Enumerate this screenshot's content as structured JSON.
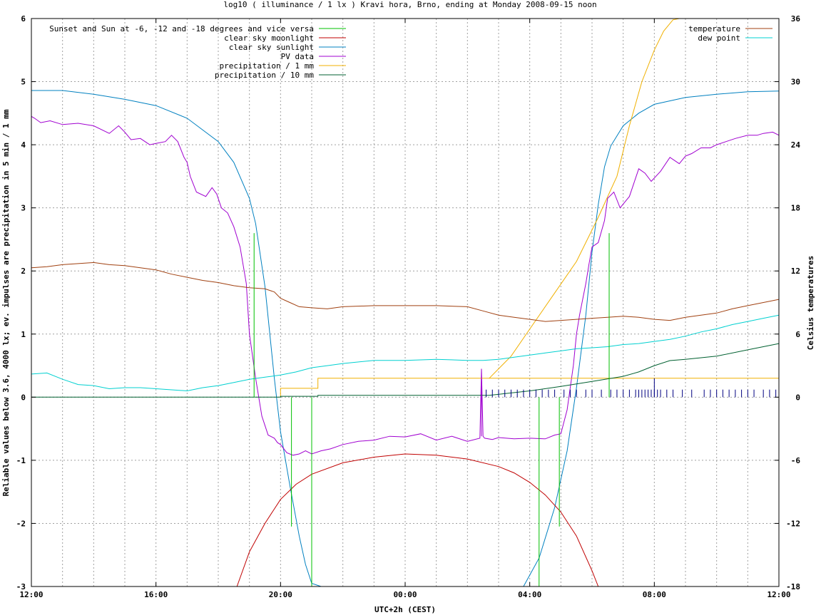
{
  "chart_data": {
    "type": "line",
    "title": "log10 ( illuminance / 1 lx ) Kravi hora, Brno, ending at Monday 2008-09-15 noon",
    "xlabel": "UTC+2h (CEST)",
    "ylabel": "Reliable values below 3.6, 4000 lx; ev. impulses are precipitation in 5 min / 1 mm",
    "y2label": "Celsius temperatures",
    "xlim": [
      0,
      24
    ],
    "ylim": [
      -3,
      6
    ],
    "y2lim": [
      -18,
      36
    ],
    "grid": true,
    "x_ticks": [
      {
        "v": 0,
        "label": "12:00"
      },
      {
        "v": 4,
        "label": "16:00"
      },
      {
        "v": 8,
        "label": "20:00"
      },
      {
        "v": 12,
        "label": "00:00"
      },
      {
        "v": 16,
        "label": "04:00"
      },
      {
        "v": 20,
        "label": "08:00"
      },
      {
        "v": 24,
        "label": "12:00"
      }
    ],
    "y_ticks": [
      {
        "v": -3,
        "label": "-3"
      },
      {
        "v": -2,
        "label": "-2"
      },
      {
        "v": -1,
        "label": "-1"
      },
      {
        "v": 0,
        "label": "0"
      },
      {
        "v": 1,
        "label": "1"
      },
      {
        "v": 2,
        "label": "2"
      },
      {
        "v": 3,
        "label": "3"
      },
      {
        "v": 4,
        "label": "4"
      },
      {
        "v": 5,
        "label": "5"
      },
      {
        "v": 6,
        "label": "6"
      }
    ],
    "y2_ticks": [
      {
        "v": -18,
        "label": "-18"
      },
      {
        "v": -12,
        "label": "-12"
      },
      {
        "v": -6,
        "label": "-6"
      },
      {
        "v": 0,
        "label": "0"
      },
      {
        "v": 6,
        "label": "6"
      },
      {
        "v": 12,
        "label": "12"
      },
      {
        "v": 18,
        "label": "18"
      },
      {
        "v": 24,
        "label": "24"
      },
      {
        "v": 30,
        "label": "30"
      },
      {
        "v": 36,
        "label": "36"
      }
    ],
    "legend_left": [
      {
        "name": "Sunset and Sun at -6, -12 and -18 degrees and vice versa",
        "color": "#00c000"
      },
      {
        "name": "clear sky moonlight",
        "color": "#c00000"
      },
      {
        "name": "clear sky sunlight",
        "color": "#0080c0"
      },
      {
        "name": "PV data",
        "color": "#a000d0"
      },
      {
        "name": "precipitation / 1 mm",
        "color": "#f0b000"
      },
      {
        "name": "precipitation / 10 mm",
        "color": "#006030"
      }
    ],
    "legend_right": [
      {
        "name": "temperature",
        "color": "#a04010"
      },
      {
        "name": "dew point",
        "color": "#00d0d0"
      }
    ],
    "series": [
      {
        "key": "sunlight",
        "axis": "y",
        "color": "#0080c0",
        "x": [
          0,
          1,
          2,
          3,
          4,
          5,
          6,
          6.5,
          7,
          7.2,
          7.5,
          7.8,
          8,
          8.3,
          8.6,
          8.8,
          9.0,
          9.3,
          15.8,
          16.3,
          16.8,
          17.2,
          17.5,
          17.8,
          18.0,
          18.2,
          18.4,
          18.6,
          19,
          19.5,
          20,
          21,
          22,
          23,
          24
        ],
        "y": [
          4.86,
          4.86,
          4.8,
          4.72,
          4.62,
          4.42,
          4.05,
          3.72,
          3.15,
          2.75,
          1.75,
          0.3,
          -0.55,
          -1.4,
          -2.2,
          -2.65,
          -2.95,
          -3.0,
          -3.0,
          -2.55,
          -1.75,
          -0.85,
          0.15,
          1.3,
          2.3,
          3.05,
          3.65,
          3.98,
          4.3,
          4.5,
          4.64,
          4.75,
          4.8,
          4.84,
          4.85
        ]
      },
      {
        "key": "moonlight",
        "axis": "y",
        "color": "#c00000",
        "x": [
          6.6,
          7.0,
          7.5,
          8.0,
          8.5,
          9,
          10,
          11,
          12,
          13,
          14,
          15,
          15.5,
          16,
          16.5,
          17,
          17.5,
          18,
          18.2
        ],
        "y": [
          -3.0,
          -2.45,
          -2.0,
          -1.62,
          -1.38,
          -1.22,
          -1.04,
          -0.95,
          -0.9,
          -0.92,
          -0.98,
          -1.1,
          -1.2,
          -1.35,
          -1.55,
          -1.82,
          -2.2,
          -2.75,
          -3.0
        ]
      },
      {
        "key": "pv",
        "axis": "y",
        "color": "#a000d0",
        "x": [
          0,
          0.1,
          0.3,
          0.6,
          1,
          1.5,
          2,
          2.5,
          2.8,
          3.0,
          3.2,
          3.5,
          3.8,
          4.0,
          4.3,
          4.5,
          4.7,
          4.9,
          5.0,
          5.1,
          5.3,
          5.6,
          5.8,
          5.95,
          6.1,
          6.3,
          6.5,
          6.7,
          6.9,
          7.0,
          7.2,
          7.4,
          7.5,
          7.6,
          7.8,
          7.9,
          8.0,
          8.2,
          8.4,
          8.6,
          8.8,
          9.0,
          9.3,
          9.6,
          10,
          10.5,
          11,
          11.5,
          12,
          12.5,
          13,
          13.5,
          14,
          14.4,
          14.45,
          14.5,
          14.55,
          14.8,
          15,
          15.5,
          16,
          16.5,
          16.8,
          17.0,
          17.2,
          17.4,
          17.5,
          17.6,
          17.8,
          17.9,
          18.0,
          18.2,
          18.4,
          18.5,
          18.7,
          18.9,
          19.2,
          19.5,
          19.7,
          19.9,
          20.2,
          20.5,
          20.8,
          21.0,
          21.2,
          21.5,
          21.8,
          22.0,
          22.3,
          22.6,
          23.0,
          23.3,
          23.5,
          23.8,
          24
        ],
        "y": [
          4.45,
          4.42,
          4.35,
          4.38,
          4.32,
          4.34,
          4.3,
          4.18,
          4.3,
          4.2,
          4.08,
          4.1,
          4.0,
          4.02,
          4.05,
          4.15,
          4.05,
          3.8,
          3.72,
          3.5,
          3.25,
          3.18,
          3.32,
          3.22,
          3.0,
          2.92,
          2.7,
          2.38,
          1.8,
          1.0,
          0.3,
          -0.3,
          -0.45,
          -0.6,
          -0.65,
          -0.72,
          -0.75,
          -0.88,
          -0.92,
          -0.9,
          -0.85,
          -0.9,
          -0.85,
          -0.82,
          -0.75,
          -0.7,
          -0.68,
          -0.62,
          -0.63,
          -0.58,
          -0.68,
          -0.62,
          -0.7,
          -0.65,
          0.45,
          -0.62,
          -0.65,
          -0.67,
          -0.64,
          -0.66,
          -0.65,
          -0.66,
          -0.6,
          -0.58,
          -0.2,
          0.5,
          1.0,
          1.3,
          1.8,
          2.1,
          2.38,
          2.45,
          2.8,
          3.15,
          3.25,
          3.0,
          3.18,
          3.62,
          3.55,
          3.42,
          3.58,
          3.8,
          3.7,
          3.82,
          3.86,
          3.95,
          3.95,
          4.0,
          4.05,
          4.1,
          4.15,
          4.15,
          4.18,
          4.2,
          4.15
        ]
      },
      {
        "key": "precip1",
        "axis": "y",
        "color": "#f0b000",
        "x": [
          8.0,
          8.0,
          9.2,
          9.2,
          14.7,
          14.7,
          24
        ],
        "y": [
          0.0,
          0.14,
          0.14,
          0.3,
          0.3,
          0.3,
          0.3
        ],
        "x2": [
          14.7,
          15.4,
          16.1,
          16.8,
          17.5,
          18.2,
          18.8,
          19.2,
          19.6,
          20.0,
          20.3,
          20.6,
          20.8
        ],
        "y2": [
          0.3,
          0.65,
          1.15,
          1.65,
          2.15,
          2.85,
          3.5,
          4.3,
          5.0,
          5.5,
          5.8,
          5.98,
          6.0
        ]
      },
      {
        "key": "precip10",
        "axis": "y",
        "color": "#006030",
        "x": [
          0,
          8.0,
          8.0,
          9.2,
          9.2,
          14.7,
          16,
          17,
          18,
          19,
          19.5,
          20,
          20.5,
          21,
          22,
          23,
          24
        ],
        "y": [
          0,
          0,
          0.014,
          0.014,
          0.03,
          0.03,
          0.1,
          0.17,
          0.25,
          0.33,
          0.4,
          0.5,
          0.58,
          0.6,
          0.65,
          0.75,
          0.85
        ]
      },
      {
        "key": "temperature",
        "axis": "y2",
        "color": "#a04010",
        "x": [
          0,
          0.5,
          1,
          1.5,
          2,
          2.5,
          3,
          3.5,
          4,
          4.5,
          5,
          5.5,
          6,
          6.5,
          7,
          7.5,
          7.8,
          8.0,
          8.3,
          8.6,
          9,
          9.5,
          10,
          11,
          12,
          13,
          14,
          14.5,
          15,
          15.5,
          16,
          16.5,
          17,
          17.5,
          18,
          18.5,
          19,
          19.5,
          20,
          20.5,
          21,
          21.5,
          22,
          22.5,
          23,
          23.5,
          24
        ],
        "y": [
          12.3,
          12.4,
          12.6,
          12.7,
          12.8,
          12.6,
          12.5,
          12.3,
          12.1,
          11.7,
          11.4,
          11.1,
          10.9,
          10.6,
          10.4,
          10.3,
          10.0,
          9.4,
          9.0,
          8.6,
          8.5,
          8.4,
          8.6,
          8.7,
          8.7,
          8.7,
          8.6,
          8.2,
          7.8,
          7.6,
          7.4,
          7.2,
          7.3,
          7.4,
          7.5,
          7.6,
          7.7,
          7.6,
          7.4,
          7.3,
          7.6,
          7.8,
          8.0,
          8.4,
          8.7,
          9.0,
          9.3
        ]
      },
      {
        "key": "dewpoint",
        "axis": "y2",
        "color": "#00d0d0",
        "x": [
          0,
          0.5,
          1,
          1.5,
          2,
          2.5,
          3,
          3.5,
          4,
          4.5,
          5,
          5.5,
          6,
          6.5,
          7,
          7.5,
          8,
          8.5,
          9,
          9.5,
          10,
          11,
          12,
          13,
          14,
          14.5,
          15,
          15.5,
          16,
          16.5,
          17,
          17.5,
          18,
          18.5,
          19,
          19.5,
          20,
          20.5,
          21,
          21.5,
          22,
          22.5,
          23,
          23.5,
          24
        ],
        "y": [
          2.2,
          2.3,
          1.7,
          1.2,
          1.1,
          0.8,
          0.9,
          0.9,
          0.8,
          0.7,
          0.6,
          0.9,
          1.1,
          1.4,
          1.7,
          1.9,
          2.1,
          2.4,
          2.8,
          3.0,
          3.2,
          3.5,
          3.5,
          3.6,
          3.5,
          3.5,
          3.6,
          3.8,
          4.0,
          4.2,
          4.4,
          4.6,
          4.7,
          4.8,
          5.0,
          5.1,
          5.3,
          5.5,
          5.8,
          6.2,
          6.5,
          6.9,
          7.2,
          7.5,
          7.8
        ]
      }
    ],
    "sun_events": [
      {
        "x": 7.15,
        "y": 2.6
      },
      {
        "x": 8.35,
        "y": -2.05
      },
      {
        "x": 9.0,
        "y": -3.0
      },
      {
        "x": 16.3,
        "y": -3.0
      },
      {
        "x": 16.95,
        "y": -2.05
      },
      {
        "x": 18.55,
        "y": 2.6
      }
    ],
    "pv_spike": {
      "x": 14.45,
      "y": 0.45
    },
    "precip_impulses": {
      "color": "#000080",
      "height": 0.12,
      "x": [
        14.6,
        14.8,
        15.0,
        15.2,
        15.4,
        15.6,
        15.8,
        16.0,
        16.2,
        16.4,
        16.6,
        16.8,
        17.1,
        17.3,
        17.5,
        17.8,
        18.0,
        18.3,
        18.6,
        18.8,
        19.0,
        19.2,
        19.4,
        19.5,
        19.6,
        19.7,
        19.8,
        19.9,
        20.0,
        20.1,
        20.2,
        20.4,
        20.6,
        20.9,
        21.2,
        21.6,
        21.8,
        22.0,
        22.2,
        22.4,
        22.6,
        22.8,
        23.0,
        23.2,
        23.5,
        23.7,
        23.9
      ],
      "tall": [
        {
          "x": 20.0,
          "h": 0.3
        }
      ]
    }
  }
}
